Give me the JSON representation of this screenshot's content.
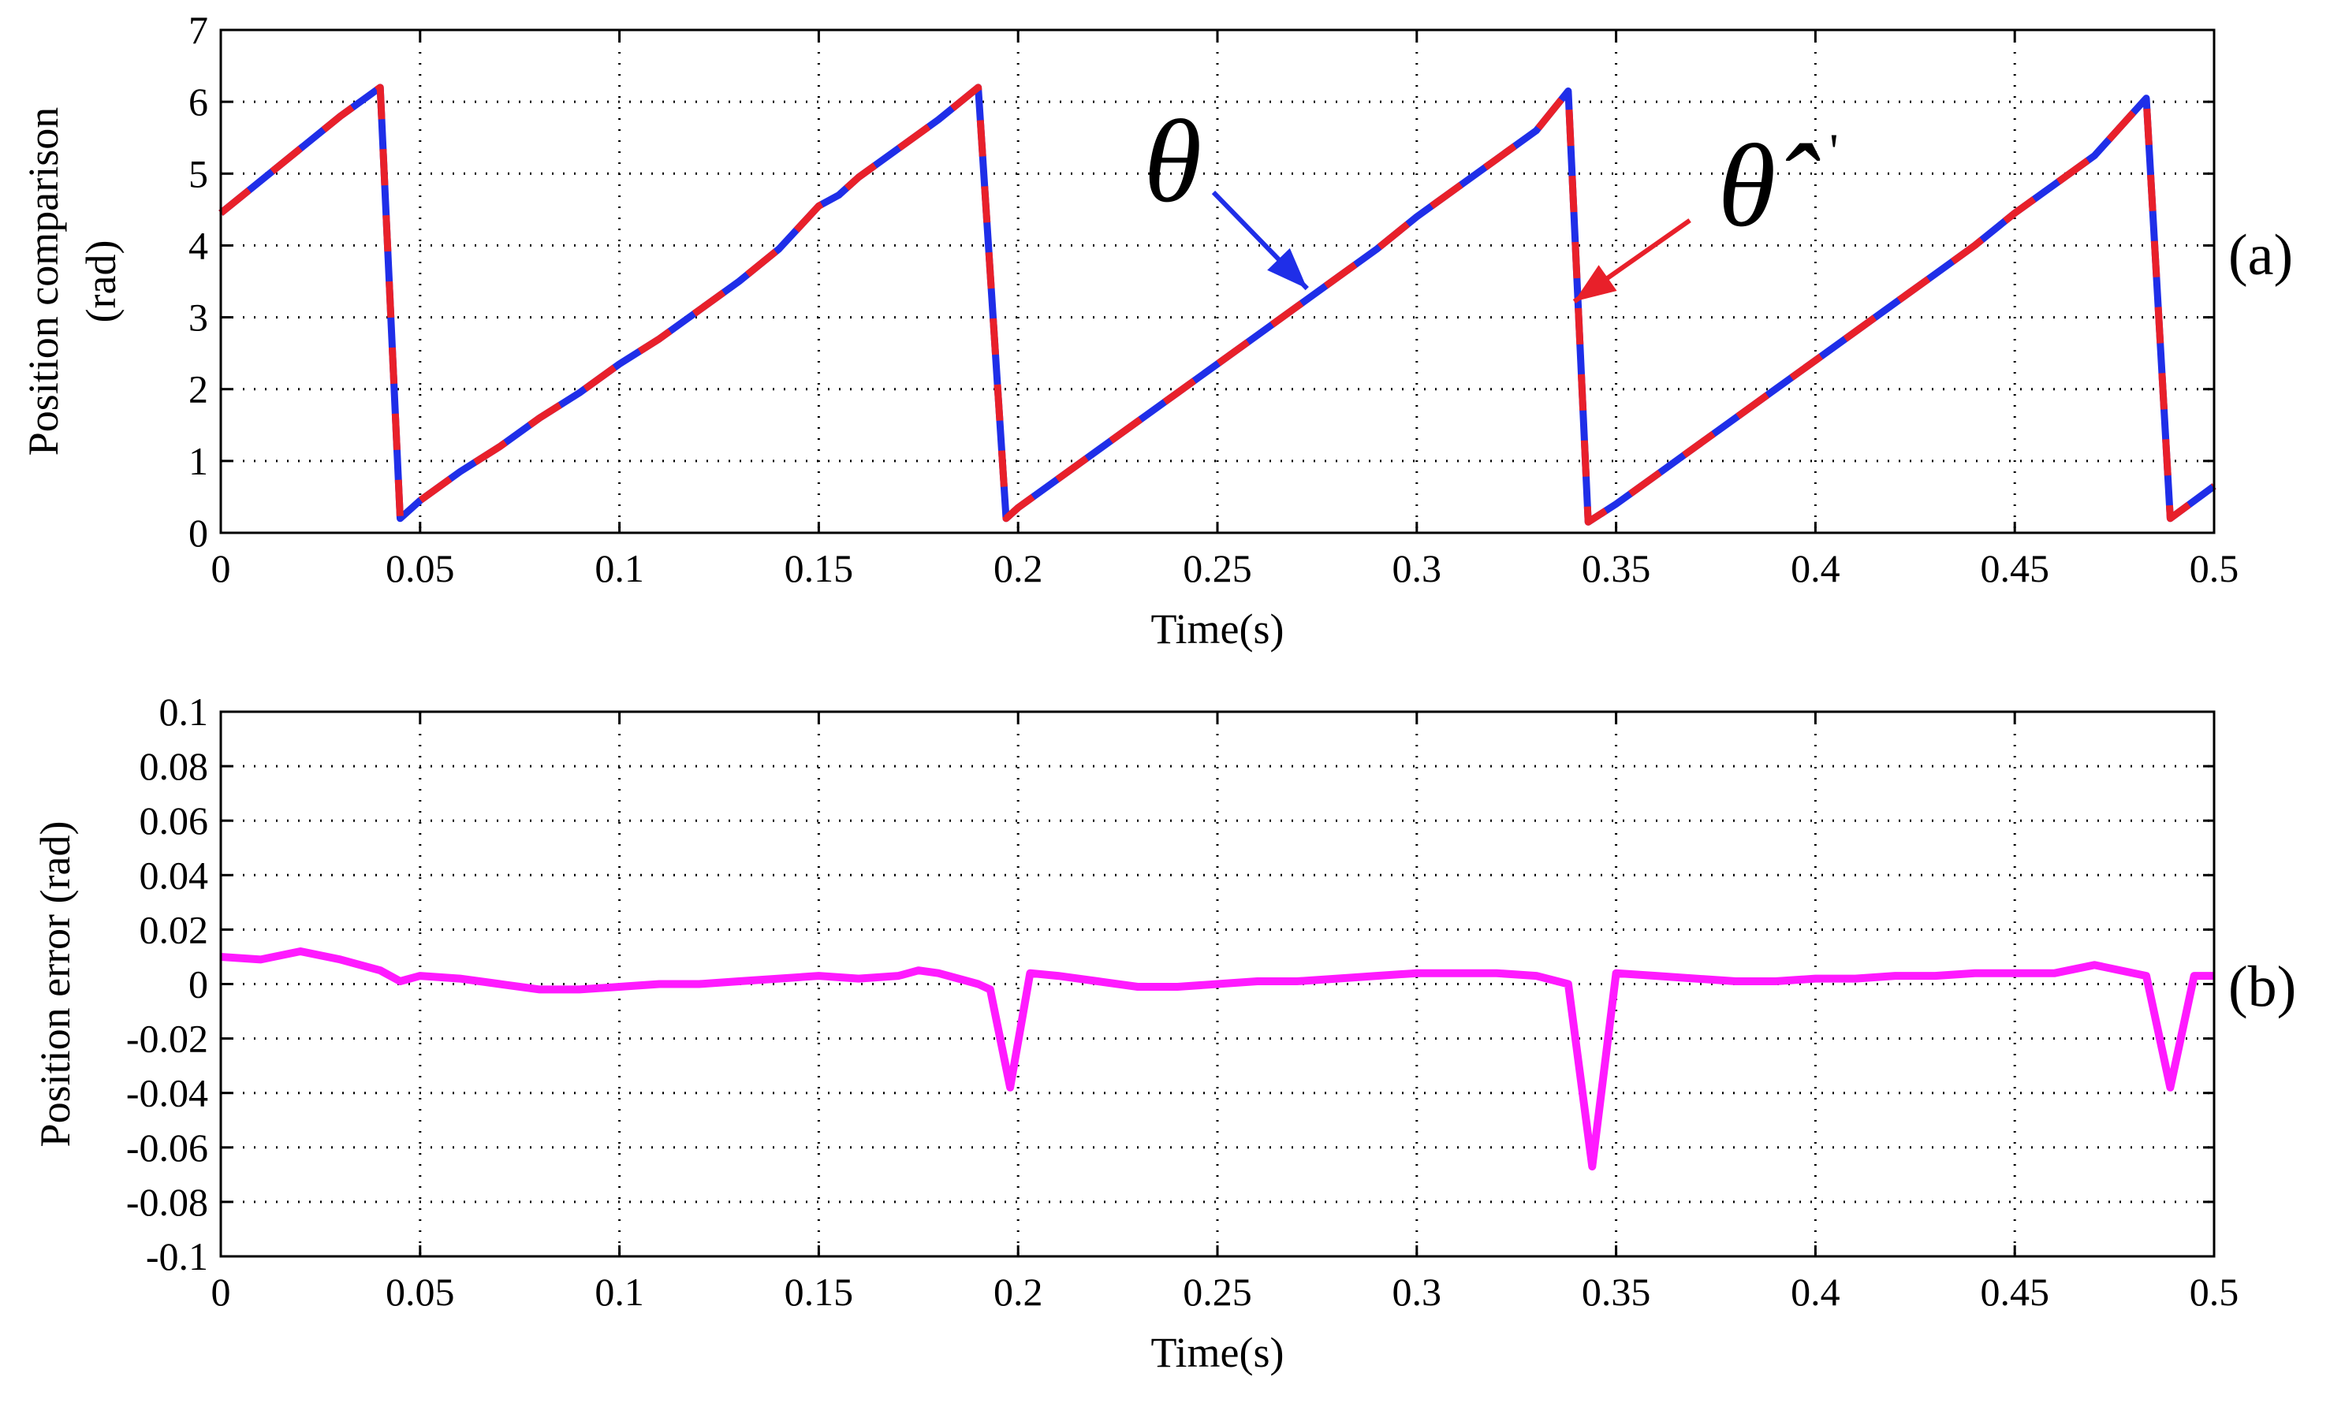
{
  "chart_data": [
    {
      "panel": "(a)",
      "type": "line",
      "xlabel": "Time(s)",
      "ylabel_lines": [
        "Position comparison",
        "(rad)"
      ],
      "xlim": [
        0,
        0.5
      ],
      "ylim": [
        0,
        7
      ],
      "xticks": [
        "0",
        "0.05",
        "0.1",
        "0.15",
        "0.2",
        "0.25",
        "0.3",
        "0.35",
        "0.4",
        "0.45",
        "0.5"
      ],
      "yticks": [
        "0",
        "1",
        "2",
        "3",
        "4",
        "5",
        "6",
        "7"
      ],
      "grid": true,
      "x": [
        0,
        0.01,
        0.02,
        0.03,
        0.04,
        0.045,
        0.05,
        0.06,
        0.07,
        0.08,
        0.09,
        0.1,
        0.11,
        0.12,
        0.13,
        0.14,
        0.15,
        0.155,
        0.16,
        0.17,
        0.18,
        0.19,
        0.197,
        0.2,
        0.21,
        0.22,
        0.23,
        0.24,
        0.25,
        0.26,
        0.27,
        0.28,
        0.29,
        0.3,
        0.31,
        0.32,
        0.33,
        0.338,
        0.343,
        0.35,
        0.36,
        0.37,
        0.38,
        0.39,
        0.4,
        0.41,
        0.42,
        0.43,
        0.44,
        0.45,
        0.46,
        0.47,
        0.483,
        0.489,
        0.5
      ],
      "series": [
        {
          "name": "θ",
          "color": "#1f2ee8",
          "values": [
            4.45,
            4.9,
            5.35,
            5.8,
            6.2,
            0.2,
            0.45,
            0.85,
            1.2,
            1.6,
            1.95,
            2.35,
            2.7,
            3.1,
            3.5,
            3.95,
            4.55,
            4.7,
            4.95,
            5.35,
            5.75,
            6.2,
            0.2,
            0.35,
            0.75,
            1.15,
            1.55,
            1.95,
            2.35,
            2.75,
            3.15,
            3.55,
            3.95,
            4.4,
            4.8,
            5.2,
            5.6,
            6.15,
            0.15,
            0.4,
            0.8,
            1.2,
            1.6,
            2.0,
            2.4,
            2.8,
            3.2,
            3.6,
            4.0,
            4.45,
            4.85,
            5.25,
            6.05,
            0.2,
            0.65
          ]
        },
        {
          "name": "θ̂'",
          "color": "#e8202a",
          "values": [
            4.45,
            4.9,
            5.35,
            5.8,
            6.2,
            0.2,
            0.45,
            0.85,
            1.2,
            1.6,
            1.95,
            2.35,
            2.7,
            3.1,
            3.5,
            3.95,
            4.55,
            4.7,
            4.95,
            5.35,
            5.75,
            6.2,
            0.2,
            0.35,
            0.75,
            1.15,
            1.55,
            1.95,
            2.35,
            2.75,
            3.15,
            3.55,
            3.95,
            4.4,
            4.8,
            5.2,
            5.6,
            6.15,
            0.15,
            0.4,
            0.8,
            1.2,
            1.6,
            2.0,
            2.4,
            2.8,
            3.2,
            3.6,
            4.0,
            4.45,
            4.85,
            5.25,
            6.05,
            0.2,
            0.65
          ]
        }
      ],
      "annotations": [
        {
          "text": "θ",
          "points_to": "blue line near x=0.27"
        },
        {
          "text": "θ̂",
          "prime": "'",
          "points_to": "red line near x=0.34"
        }
      ]
    },
    {
      "panel": "(b)",
      "type": "line",
      "xlabel": "Time(s)",
      "ylabel_lines": [
        "Position error (rad)"
      ],
      "xlim": [
        0,
        0.5
      ],
      "ylim": [
        -0.1,
        0.1
      ],
      "xticks": [
        "0",
        "0.05",
        "0.1",
        "0.15",
        "0.2",
        "0.25",
        "0.3",
        "0.35",
        "0.4",
        "0.45",
        "0.5"
      ],
      "yticks": [
        "0.1",
        "0.08",
        "0.06",
        "0.04",
        "0.02",
        "0",
        "-0.02",
        "-0.04",
        "-0.06",
        "-0.08",
        "-0.1"
      ],
      "grid": true,
      "series": [
        {
          "name": "position error",
          "color": "#ff1aff",
          "x": [
            0,
            0.01,
            0.02,
            0.03,
            0.04,
            0.045,
            0.05,
            0.06,
            0.07,
            0.08,
            0.09,
            0.1,
            0.11,
            0.12,
            0.13,
            0.14,
            0.15,
            0.16,
            0.17,
            0.175,
            0.18,
            0.19,
            0.193,
            0.198,
            0.203,
            0.21,
            0.22,
            0.23,
            0.24,
            0.25,
            0.26,
            0.27,
            0.28,
            0.29,
            0.3,
            0.31,
            0.32,
            0.33,
            0.338,
            0.344,
            0.35,
            0.36,
            0.37,
            0.38,
            0.39,
            0.4,
            0.41,
            0.42,
            0.43,
            0.44,
            0.45,
            0.46,
            0.47,
            0.483,
            0.489,
            0.495,
            0.5
          ],
          "values": [
            0.01,
            0.009,
            0.012,
            0.009,
            0.005,
            0.001,
            0.003,
            0.002,
            0.0,
            -0.002,
            -0.002,
            -0.001,
            0.0,
            0.0,
            0.001,
            0.002,
            0.003,
            0.002,
            0.003,
            0.005,
            0.004,
            0.0,
            -0.002,
            -0.038,
            0.004,
            0.003,
            0.001,
            -0.001,
            -0.001,
            0.0,
            0.001,
            0.001,
            0.002,
            0.003,
            0.004,
            0.004,
            0.004,
            0.003,
            0.0,
            -0.067,
            0.004,
            0.003,
            0.002,
            0.001,
            0.001,
            0.002,
            0.002,
            0.003,
            0.003,
            0.004,
            0.004,
            0.004,
            0.007,
            0.003,
            -0.038,
            0.003,
            0.003
          ]
        }
      ]
    }
  ]
}
